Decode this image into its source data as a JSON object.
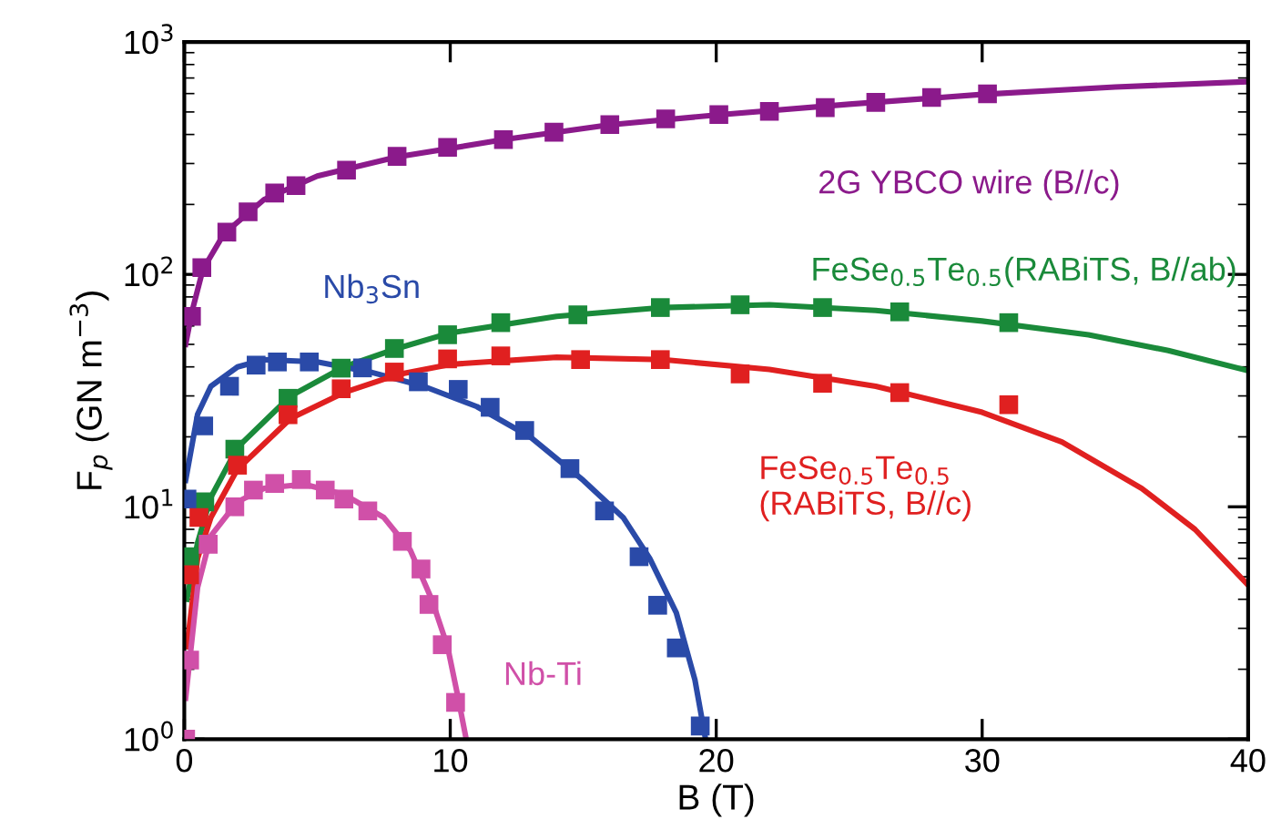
{
  "chart_data": {
    "type": "scatter",
    "xlabel": "B (T)",
    "ylabel": "F$_{p}$ (GN m$^{−3}$)",
    "log": "y",
    "grid": false,
    "legend": false,
    "marker": "square",
    "xlim": [
      0,
      40
    ],
    "xticks": [
      0,
      10,
      20,
      30,
      40
    ],
    "ylim": [
      1,
      1000
    ],
    "yticks": [
      {
        "value": 1,
        "label": "10$^{0}$"
      },
      {
        "value": 10,
        "label": "10$^{1}$"
      },
      {
        "value": 100,
        "label": "10$^{2}$"
      },
      {
        "value": 1000,
        "label": "10$^{3}$"
      }
    ],
    "series": [
      {
        "name": "2G YBCO wire (B//c)",
        "color": "#8b1a8b",
        "x": [
          0.27,
          0.66,
          1.6,
          2.4,
          3.4,
          4.2,
          6.1,
          8.0,
          9.9,
          12.0,
          13.9,
          16.0,
          18.1,
          20.1,
          22.0,
          24.1,
          26.0,
          28.1,
          30.2
        ],
        "values": [
          66,
          107,
          152,
          186,
          224,
          241,
          281,
          322,
          352,
          380,
          409,
          441,
          467,
          487,
          503,
          522,
          550,
          577,
          598
        ]
      },
      {
        "type": "line",
        "marker": "none",
        "color": "#8b1a8b",
        "x": [
          0.05,
          0.3,
          0.7,
          1.5,
          3,
          5,
          8,
          12,
          16,
          20,
          25,
          30,
          35,
          40
        ],
        "values": [
          50,
          70,
          105,
          150,
          210,
          265,
          320,
          380,
          440,
          485,
          540,
          595,
          640,
          675
        ]
      },
      {
        "name": "FeSe$_{0.5}$Te$_{0.5}$(RABiTS, B//ab)",
        "color": "#1a8a3a",
        "x": [
          0.2,
          0.77,
          1.9,
          3.9,
          5.9,
          7.9,
          9.9,
          11.9,
          14.8,
          17.9,
          20.9,
          24.0,
          26.9,
          31.0
        ],
        "values": [
          6.1,
          10.5,
          17.7,
          29.3,
          39.5,
          48,
          55,
          62,
          67,
          72,
          74,
          72,
          69,
          62
        ]
      },
      {
        "type": "line",
        "marker": "none",
        "color": "#1a8a3a",
        "x": [
          0.1,
          0.5,
          1,
          2,
          4,
          6,
          8,
          10,
          14,
          18,
          22,
          26,
          30,
          34,
          37,
          40
        ],
        "values": [
          4,
          7,
          11,
          18,
          30,
          40,
          48,
          56,
          66,
          72,
          74,
          70,
          63,
          55,
          47,
          38.5
        ]
      },
      {
        "name": "Nb$_{3}$Sn",
        "color": "#2a4aa8",
        "x": [
          0.1,
          0.73,
          1.7,
          2.7,
          3.5,
          4.7,
          6.7,
          8.8,
          10.3,
          11.5,
          12.8,
          14.5,
          15.8,
          17.1,
          17.8,
          18.5,
          19.4
        ],
        "values": [
          10.8,
          22.3,
          33,
          40.7,
          42,
          42,
          39.6,
          34.5,
          32,
          26.8,
          21.3,
          14.6,
          9.6,
          6.1,
          3.77,
          2.47,
          1.14
        ]
      },
      {
        "type": "line",
        "marker": "none",
        "color": "#2a4aa8",
        "x": [
          0.05,
          0.5,
          1,
          2,
          3,
          5,
          7,
          9,
          11,
          13,
          15,
          16.5,
          17.5,
          18.5,
          19.2,
          19.6
        ],
        "values": [
          13,
          25,
          33,
          40,
          43,
          42,
          38,
          33,
          27,
          20,
          13,
          9,
          6,
          3.5,
          1.8,
          1
        ]
      },
      {
        "name": "FeSe$_{0.5}$Te$_{0.5}$\n(RABiTS, B//c)",
        "color": "#e02020",
        "x": [
          0.2,
          0.55,
          2.0,
          3.9,
          5.9,
          7.9,
          9.9,
          11.9,
          14.9,
          17.9,
          20.9,
          24.0,
          26.9,
          31.0
        ],
        "values": [
          5.1,
          9.0,
          15.1,
          24.9,
          32.2,
          38,
          43.3,
          44.6,
          43,
          43,
          37.3,
          34,
          31,
          27.5
        ]
      },
      {
        "type": "line",
        "marker": "none",
        "color": "#e02020",
        "x": [
          0.1,
          0.5,
          1,
          2,
          4,
          6,
          8,
          10,
          14,
          18,
          22,
          26,
          30,
          33,
          36,
          38,
          40
        ],
        "values": [
          2.5,
          6,
          9,
          14.5,
          24,
          31,
          37,
          41,
          44,
          43,
          39,
          33,
          25.5,
          19,
          12,
          8,
          4.6
        ]
      },
      {
        "name": "Nb-Ti",
        "color": "#d050a8",
        "x": [
          0.05,
          0.2,
          0.9,
          1.9,
          2.6,
          3.4,
          4.4,
          5.3,
          6.0,
          6.9,
          8.2,
          8.9,
          9.2,
          9.7,
          10.2
        ],
        "values": [
          1.0,
          2.19,
          6.9,
          10.0,
          11.8,
          12.6,
          13.1,
          11.8,
          10.8,
          9.6,
          7.1,
          5.4,
          3.8,
          2.55,
          1.44
        ]
      },
      {
        "type": "line",
        "marker": "none",
        "color": "#d050a8",
        "x": [
          0.05,
          0.5,
          1,
          2,
          3,
          4.5,
          6,
          7.5,
          8.5,
          9.3,
          9.9,
          10.3,
          10.6
        ],
        "values": [
          1.5,
          4.5,
          7.5,
          10.5,
          12,
          12.5,
          11.3,
          9,
          6.5,
          4,
          2.5,
          1.5,
          1
        ]
      }
    ]
  }
}
